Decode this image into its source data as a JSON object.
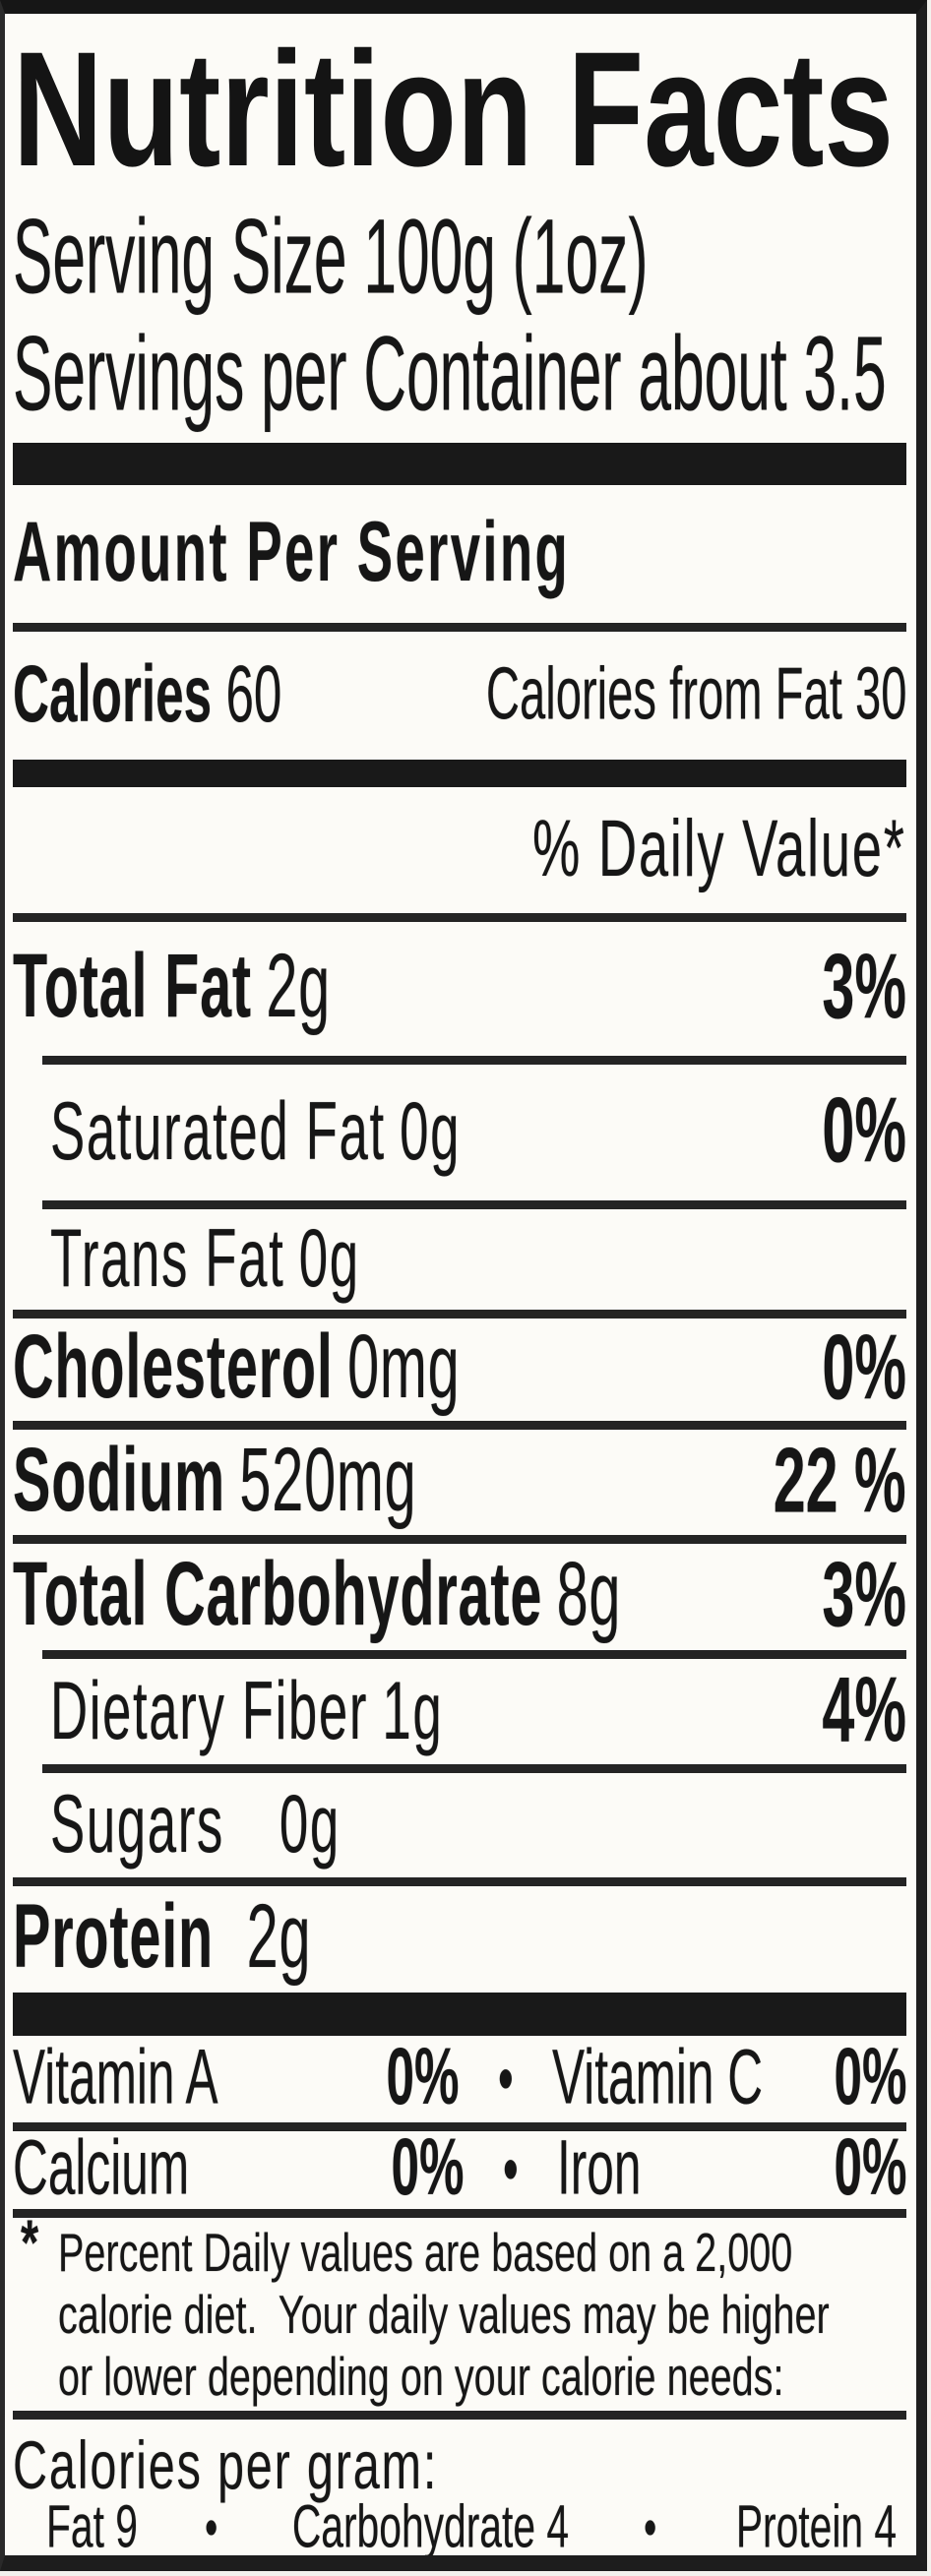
{
  "header": {
    "title": "Nutrition Facts",
    "serving_size": "Serving Size 100g (1oz)",
    "servings_per_container": "Servings per Container about 3.5"
  },
  "calories_section": {
    "amount_per_serving": "Amount Per Serving",
    "calories_label": "Calories",
    "calories_value": "60",
    "calories_from_fat": "Calories from Fat 30"
  },
  "daily_value_header": "% Daily Value*",
  "nutrients": {
    "total_fat": {
      "name": "Total Fat",
      "amount": "2g",
      "dv": "3%"
    },
    "saturated_fat": {
      "name": "Saturated Fat",
      "amount": "0g",
      "dv": "0%"
    },
    "trans_fat": {
      "name": "Trans Fat",
      "amount": "0g"
    },
    "cholesterol": {
      "name": "Cholesterol",
      "amount": "0mg",
      "dv": "0%"
    },
    "sodium": {
      "name": "Sodium",
      "amount": "520mg",
      "dv": "22 %"
    },
    "total_carbohydrate": {
      "name": "Total Carbohydrate",
      "amount": "8g",
      "dv": "3%"
    },
    "dietary_fiber": {
      "name": "Dietary Fiber",
      "amount": "1g",
      "dv": "4%"
    },
    "sugars": {
      "name": "Sugars",
      "amount": "0g"
    },
    "protein": {
      "name": "Protein",
      "amount": "2g"
    }
  },
  "micronutrients": {
    "bullet": "•",
    "vitamin_a": {
      "name": "Vitamin A",
      "value": "0%"
    },
    "vitamin_c": {
      "name": "Vitamin C",
      "value": "0%"
    },
    "calcium": {
      "name": "Calcium",
      "value": "0%"
    },
    "iron": {
      "name": "Iron",
      "value": "0%"
    }
  },
  "footnote": {
    "asterisk": "*",
    "line1": "Percent Daily values are based on a 2,000",
    "line2": "calorie diet.  Your daily values may be higher",
    "line3": "or lower depending on your calorie needs:"
  },
  "calories_per_gram": {
    "heading": "Calories per gram:",
    "bullet": "•",
    "fat": "Fat 9",
    "carbohydrate": "Carbohydrate 4",
    "protein": "Protein 4"
  }
}
